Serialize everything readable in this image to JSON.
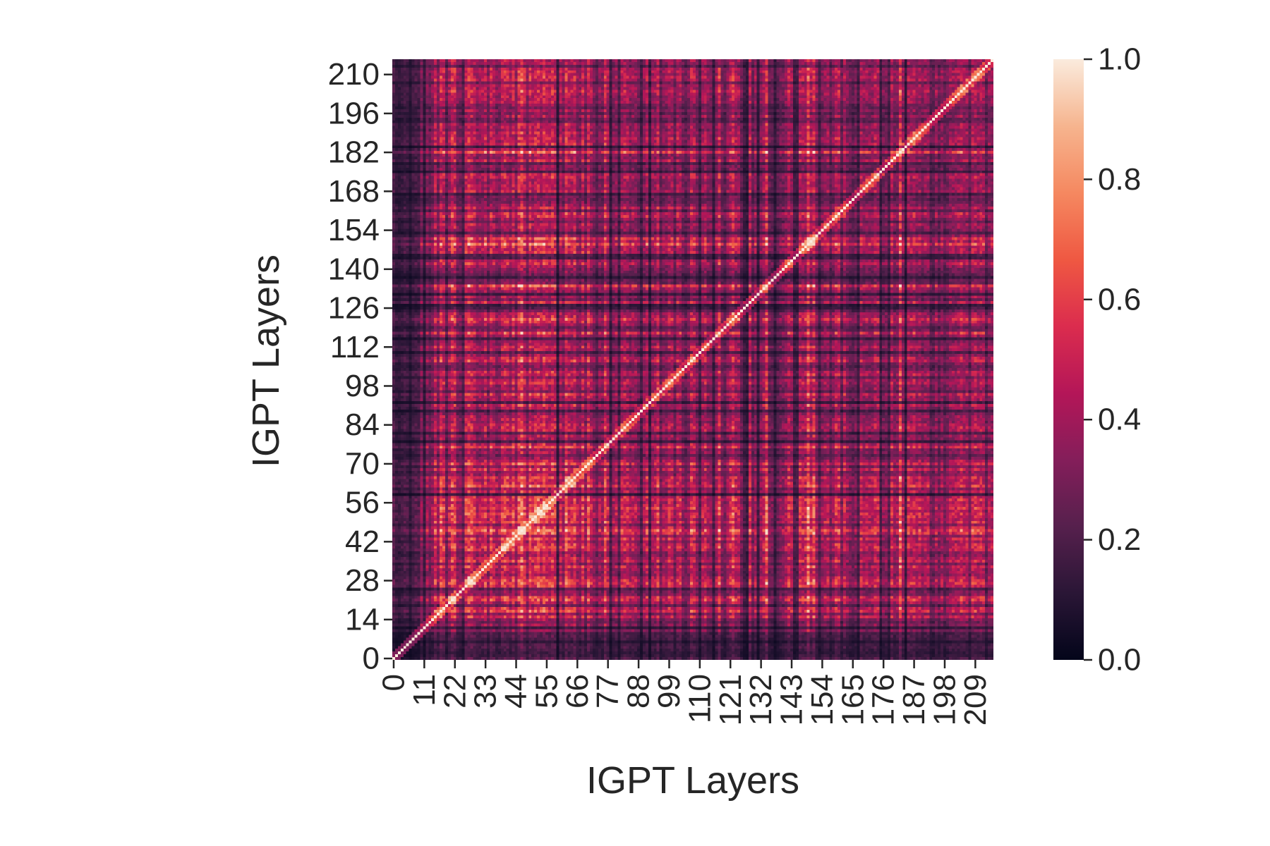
{
  "chart_data": {
    "type": "heatmap",
    "title": "",
    "xlabel": "IGPT Layers",
    "ylabel": "IGPT Layers",
    "n": 216,
    "x_ticks": [
      0,
      11,
      22,
      33,
      44,
      55,
      66,
      77,
      88,
      99,
      110,
      121,
      132,
      143,
      154,
      165,
      176,
      187,
      198,
      209
    ],
    "y_ticks": [
      0,
      14,
      28,
      42,
      56,
      70,
      84,
      98,
      112,
      126,
      140,
      154,
      168,
      182,
      196,
      210
    ],
    "y_origin": "bottom",
    "colorbar": {
      "min": 0.0,
      "max": 1.0,
      "ticks": [
        "0.0",
        "0.2",
        "0.4",
        "0.6",
        "0.8",
        "1.0"
      ],
      "colormap": "rocket",
      "colormap_stops": [
        "#03051a",
        "#2a1636",
        "#56204d",
        "#841e5a",
        "#b41658",
        "#db2c4e",
        "#ef5842",
        "#f58860",
        "#f6b48e",
        "#faebdd"
      ]
    },
    "value_description": "Symmetric similarity matrix between IGPT layers; diagonal = 1.0; off-diagonal values mostly 0.05–0.8 with bright blocks near layers 15–70.",
    "diagonal_value": 1.0
  }
}
